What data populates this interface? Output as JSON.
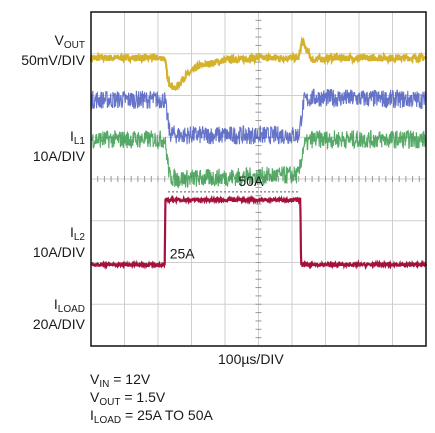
{
  "chart_data": {
    "type": "line",
    "xlabel": "100µs/DIV",
    "grid": true,
    "divisions": {
      "x": 10,
      "y": 8
    },
    "time_per_div_us": 100,
    "channels": [
      {
        "name_main": "V",
        "name_sub": "OUT",
        "scale": "50mV/DIV",
        "color": "#d4b22b",
        "points": [
          [
            0,
            2.9
          ],
          [
            2.2,
            2.9
          ],
          [
            2.3,
            2.35
          ],
          [
            2.5,
            2.15
          ],
          [
            2.8,
            2.45
          ],
          [
            3.2,
            2.7
          ],
          [
            4,
            2.85
          ],
          [
            5,
            2.9
          ],
          [
            6.2,
            2.9
          ],
          [
            6.3,
            3.3
          ],
          [
            6.6,
            2.85
          ],
          [
            7.2,
            2.9
          ],
          [
            10,
            2.9
          ]
        ],
        "noise": 0.08
      },
      {
        "name_main": "I",
        "name_sub": "L1",
        "scale": "10A/DIV",
        "color": "#4a5cc0",
        "points": [
          [
            0,
            1.9
          ],
          [
            2.2,
            1.9
          ],
          [
            2.35,
            1.1
          ],
          [
            2.6,
            1.05
          ],
          [
            6.2,
            1.05
          ],
          [
            6.35,
            1.85
          ],
          [
            6.6,
            1.95
          ],
          [
            10,
            1.9
          ]
        ],
        "noise": 0.22
      },
      {
        "name_main": "I",
        "name_sub": "L2",
        "scale": "10A/DIV",
        "color": "#3a9a4e",
        "points": [
          [
            0,
            0.95
          ],
          [
            2.2,
            0.95
          ],
          [
            2.35,
            0.05
          ],
          [
            2.6,
            0.0
          ],
          [
            6.2,
            0.1
          ],
          [
            6.35,
            0.8
          ],
          [
            6.6,
            0.95
          ],
          [
            10,
            0.95
          ]
        ],
        "noise": 0.22
      },
      {
        "name_main": "I",
        "name_sub": "LOAD",
        "scale": "20A/DIV",
        "color": "#a4123c",
        "points": [
          [
            0,
            -2.05
          ],
          [
            2.2,
            -2.05
          ],
          [
            2.22,
            -0.5
          ],
          [
            6.25,
            -0.5
          ],
          [
            6.27,
            -2.05
          ],
          [
            10,
            -2.05
          ]
        ],
        "noise": 0.03
      }
    ],
    "annotations": [
      {
        "text": "50A"
      },
      {
        "text": "25A"
      }
    ]
  },
  "conditions": {
    "vin": {
      "main": "V",
      "sub": "IN",
      "value": " = 12V"
    },
    "vout": {
      "main": "V",
      "sub": "OUT",
      "value": " = 1.5V"
    },
    "iload": {
      "main": "I",
      "sub": "LOAD",
      "value": " = 25A TO 50A"
    }
  },
  "colors": {
    "background": "#ffffff",
    "grid": "#cfcfcf",
    "frame": "#111111"
  }
}
